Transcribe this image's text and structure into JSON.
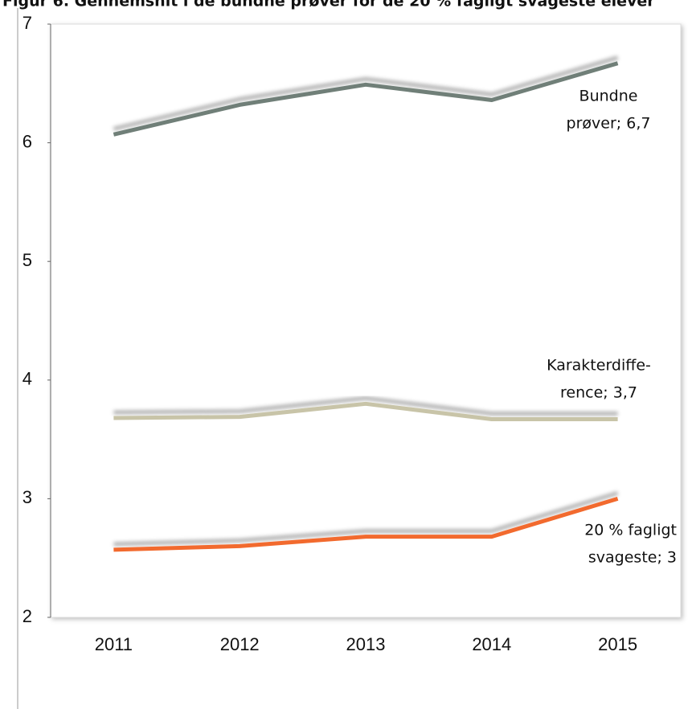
{
  "chart_data": {
    "type": "line",
    "title": "Figur 6. Gennemsnit i de bundne prøver for de 20 % fagligt svageste elever",
    "categories": [
      "2011",
      "2012",
      "2013",
      "2014",
      "2015"
    ],
    "series": [
      {
        "label": [
          "Bundne",
          "prøver; 6,7"
        ],
        "color": "#6f7f78",
        "values": [
          6.07,
          6.32,
          6.49,
          6.36,
          6.67
        ]
      },
      {
        "label": [
          "Karakterdiffe-",
          "rence; 3,7"
        ],
        "color": "#c8c4a8",
        "values": [
          3.68,
          3.69,
          3.8,
          3.67,
          3.67
        ]
      },
      {
        "label": [
          "20 % fagligt",
          "svageste; 3"
        ],
        "color": "#f26a2e",
        "values": [
          2.57,
          2.6,
          2.68,
          2.68,
          3.0
        ]
      }
    ],
    "ylim": [
      2,
      7
    ],
    "yticks": [
      2,
      3,
      4,
      5,
      6,
      7
    ]
  }
}
